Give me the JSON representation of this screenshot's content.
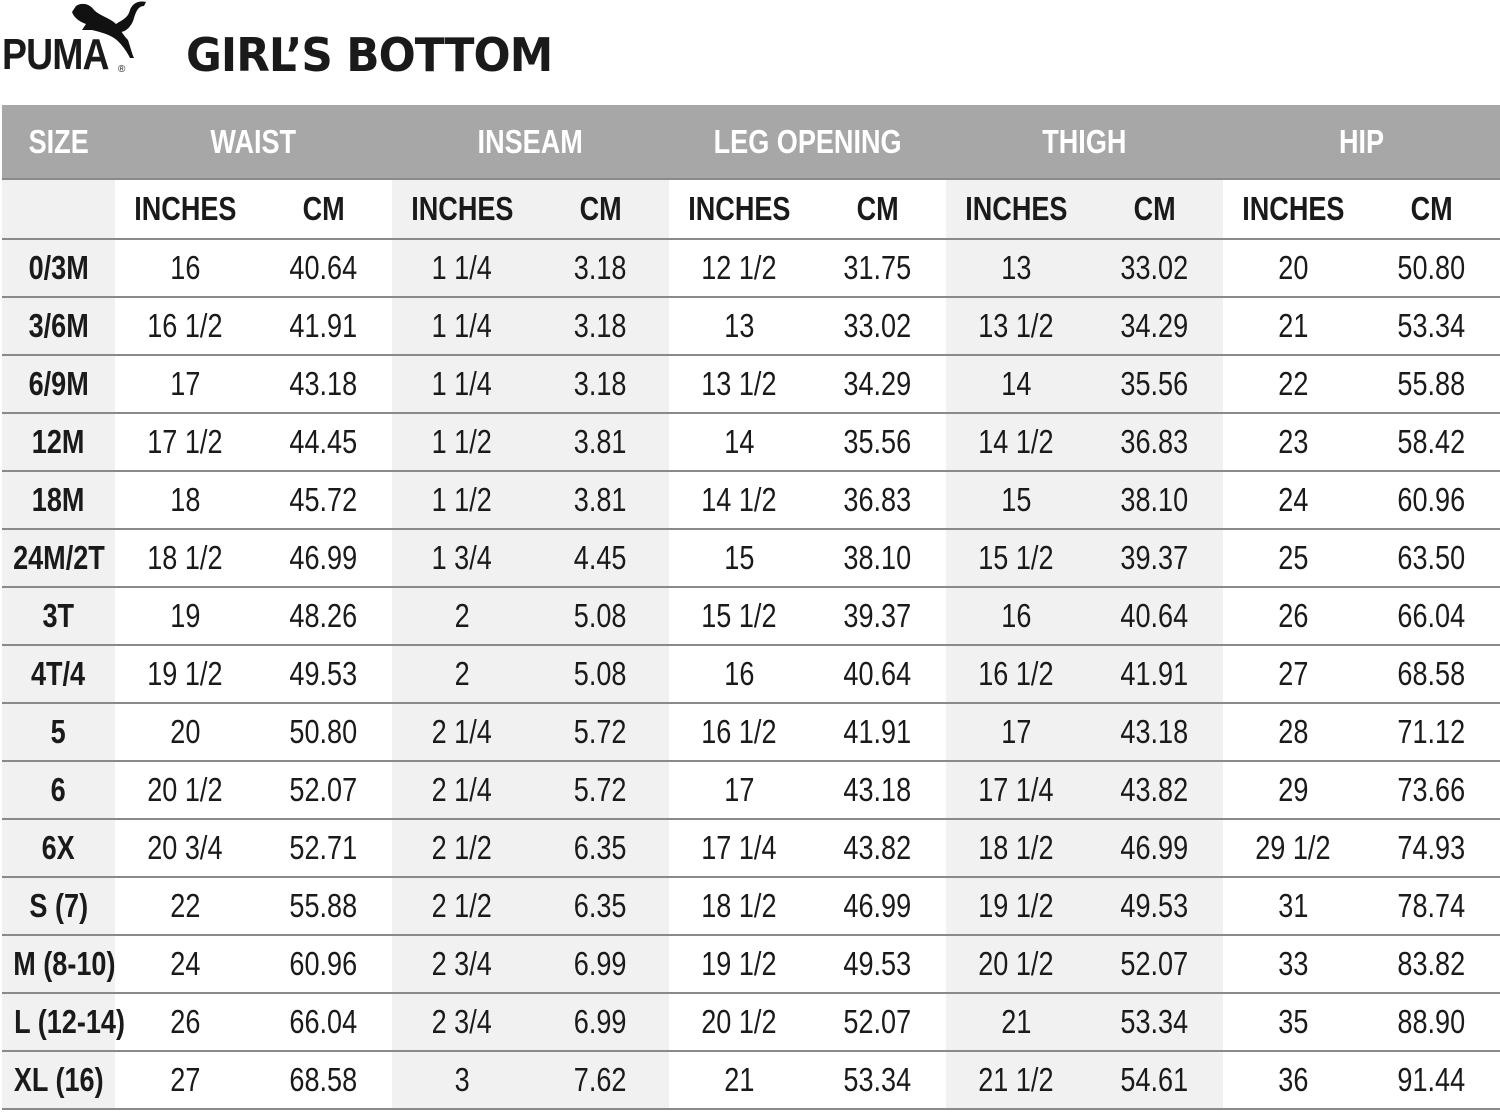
{
  "brand": {
    "logo_text": "PUMA",
    "registered": "®"
  },
  "title": "GIRL’S BOTTOM",
  "colors": {
    "header_bg": "#a7a7a7",
    "shade": "#f1f1f1"
  },
  "table": {
    "size_header": "SIZE",
    "groups": [
      "WAIST",
      "INSEAM",
      "LEG OPENING",
      "THIGH",
      "HIP"
    ],
    "units": [
      "INCHES",
      "CM"
    ],
    "rows": [
      [
        "0/3M",
        "16",
        "40.64",
        "1 1/4",
        "3.18",
        "12 1/2",
        "31.75",
        "13",
        "33.02",
        "20",
        "50.80"
      ],
      [
        "3/6M",
        "16 1/2",
        "41.91",
        "1 1/4",
        "3.18",
        "13",
        "33.02",
        "13 1/2",
        "34.29",
        "21",
        "53.34"
      ],
      [
        "6/9M",
        "17",
        "43.18",
        "1 1/4",
        "3.18",
        "13 1/2",
        "34.29",
        "14",
        "35.56",
        "22",
        "55.88"
      ],
      [
        "12M",
        "17 1/2",
        "44.45",
        "1 1/2",
        "3.81",
        "14",
        "35.56",
        "14 1/2",
        "36.83",
        "23",
        "58.42"
      ],
      [
        "18M",
        "18",
        "45.72",
        "1 1/2",
        "3.81",
        "14 1/2",
        "36.83",
        "15",
        "38.10",
        "24",
        "60.96"
      ],
      [
        "24M/2T",
        "18 1/2",
        "46.99",
        "1 3/4",
        "4.45",
        "15",
        "38.10",
        "15 1/2",
        "39.37",
        "25",
        "63.50"
      ],
      [
        "3T",
        "19",
        "48.26",
        "2",
        "5.08",
        "15 1/2",
        "39.37",
        "16",
        "40.64",
        "26",
        "66.04"
      ],
      [
        "4T/4",
        "19 1/2",
        "49.53",
        "2",
        "5.08",
        "16",
        "40.64",
        "16 1/2",
        "41.91",
        "27",
        "68.58"
      ],
      [
        "5",
        "20",
        "50.80",
        "2 1/4",
        "5.72",
        "16 1/2",
        "41.91",
        "17",
        "43.18",
        "28",
        "71.12"
      ],
      [
        "6",
        "20 1/2",
        "52.07",
        "2 1/4",
        "5.72",
        "17",
        "43.18",
        "17 1/4",
        "43.82",
        "29",
        "73.66"
      ],
      [
        "6X",
        "20 3/4",
        "52.71",
        "2 1/2",
        "6.35",
        "17 1/4",
        "43.82",
        "18 1/2",
        "46.99",
        "29 1/2",
        "74.93"
      ],
      [
        "S (7)",
        "22",
        "55.88",
        "2 1/2",
        "6.35",
        "18 1/2",
        "46.99",
        "19 1/2",
        "49.53",
        "31",
        "78.74"
      ],
      [
        "M (8-10)",
        "24",
        "60.96",
        "2 3/4",
        "6.99",
        "19 1/2",
        "49.53",
        "20 1/2",
        "52.07",
        "33",
        "83.82"
      ],
      [
        "L (12-14)",
        "26",
        "66.04",
        "2 3/4",
        "6.99",
        "20 1/2",
        "52.07",
        "21",
        "53.34",
        "35",
        "88.90"
      ],
      [
        "XL (16)",
        "27",
        "68.58",
        "3",
        "7.62",
        "21",
        "53.34",
        "21 1/2",
        "54.61",
        "36",
        "91.44"
      ]
    ]
  }
}
